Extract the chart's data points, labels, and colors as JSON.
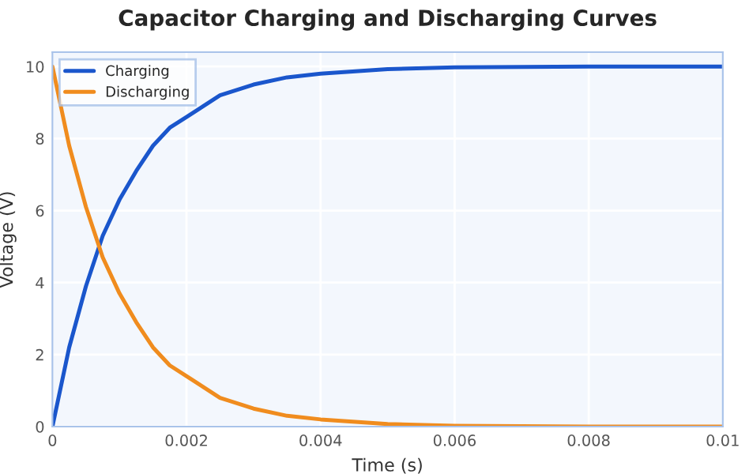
{
  "chart_data": {
    "type": "line",
    "title": "Capacitor Charging and Discharging Curves",
    "xlabel": "Time (s)",
    "ylabel": "Voltage (V)",
    "x": [
      0,
      0.00025,
      0.0005,
      0.00075,
      0.001,
      0.00125,
      0.0015,
      0.00175,
      0.002,
      0.0025,
      0.003,
      0.0035,
      0.004,
      0.005,
      0.006,
      0.008,
      0.01
    ],
    "series": [
      {
        "name": "Charging",
        "color": "#1a56cc",
        "values": [
          0,
          2.2,
          3.9,
          5.3,
          6.3,
          7.1,
          7.8,
          8.3,
          8.6,
          9.2,
          9.5,
          9.7,
          9.8,
          9.93,
          9.98,
          10,
          10
        ]
      },
      {
        "name": "Discharging",
        "color": "#f08c1e",
        "values": [
          10,
          7.8,
          6.1,
          4.7,
          3.7,
          2.9,
          2.2,
          1.7,
          1.4,
          0.8,
          0.5,
          0.3,
          0.2,
          0.07,
          0.02,
          0,
          0
        ]
      }
    ],
    "xlim": [
      0,
      0.01
    ],
    "ylim": [
      0,
      10.4
    ],
    "xticks": [
      0,
      0.002,
      0.004,
      0.006,
      0.008,
      0.01
    ],
    "yticks": [
      0,
      2,
      4,
      6,
      8,
      10
    ],
    "grid": true,
    "legend": "top left",
    "marker": "none",
    "line_style": "solid"
  }
}
